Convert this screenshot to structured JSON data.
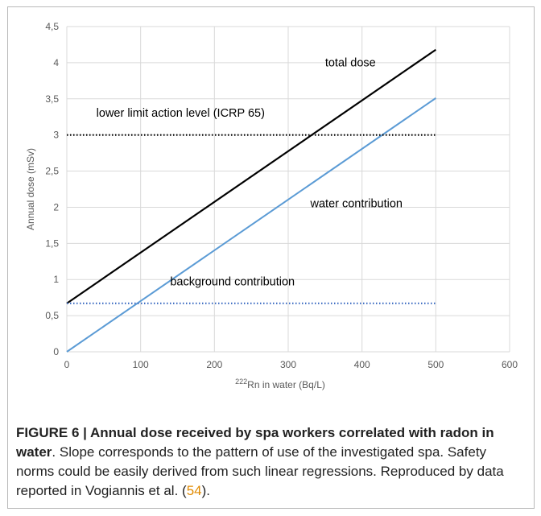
{
  "chart_data": {
    "type": "line",
    "xlabel_sup": "222",
    "xlabel_main": "Rn in water (Bq/L)",
    "ylabel": "Annual dose (mSv)",
    "xlim": [
      0,
      600
    ],
    "ylim": [
      0,
      4.5
    ],
    "x_ticks": [
      "0",
      "100",
      "200",
      "300",
      "400",
      "500",
      "600"
    ],
    "y_ticks": [
      "0",
      "0,5",
      "1",
      "1,5",
      "2",
      "2,5",
      "3",
      "3,5",
      "4",
      "4,5"
    ],
    "grid": true,
    "series": [
      {
        "name": "total dose",
        "color": "#000000",
        "style": "solid",
        "x": [
          0,
          500
        ],
        "y": [
          0.67,
          4.18
        ]
      },
      {
        "name": "water contribution",
        "color": "#5b9bd5",
        "style": "solid",
        "x": [
          0,
          500
        ],
        "y": [
          0.0,
          3.51
        ]
      },
      {
        "name": "lower limit action level (ICRP 65)",
        "color": "#000000",
        "style": "dotted",
        "x": [
          0,
          500
        ],
        "y": [
          3.0,
          3.0
        ]
      },
      {
        "name": "background contribution",
        "color": "#4472c4",
        "style": "dotted",
        "x": [
          0,
          500
        ],
        "y": [
          0.67,
          0.67
        ]
      }
    ],
    "annotations": [
      {
        "text": "total dose",
        "x": 350,
        "y": 3.95
      },
      {
        "text": "lower limit action level (ICRP 65)",
        "x": 40,
        "y": 3.25
      },
      {
        "text": "water contribution",
        "x": 330,
        "y": 2.0
      },
      {
        "text": "background contribution",
        "x": 140,
        "y": 0.92
      }
    ]
  },
  "caption": {
    "lead": "FIGURE 6 | Annual dose received by spa workers correlated with radon in water",
    "body": ". Slope corresponds to the pattern of use of the investigated spa. Safety norms could be easily derived from such linear regressions. Reproduced by data reported in Vogiannis et al. (",
    "ref": "54",
    "tail": ")."
  }
}
